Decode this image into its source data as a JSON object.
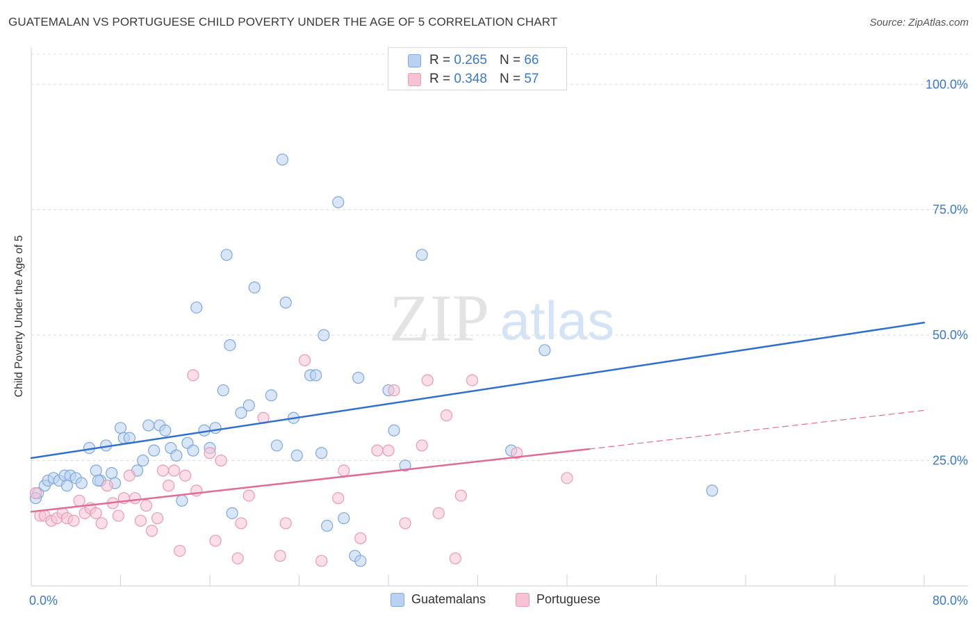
{
  "header": {
    "title": "GUATEMALAN VS PORTUGUESE CHILD POVERTY UNDER THE AGE OF 5 CORRELATION CHART",
    "source": "Source: ZipAtlas.com"
  },
  "watermark": {
    "zip": "ZIP",
    "atlas": "atlas"
  },
  "legend": {
    "rows": [
      {
        "r_label": "R =",
        "r_value": "0.265",
        "n_label": "N =",
        "n_value": "66"
      },
      {
        "r_label": "R =",
        "r_value": "0.348",
        "n_label": "N =",
        "n_value": "57"
      }
    ]
  },
  "colors": {
    "guatemalans_fill": "#b9d2f3",
    "guatemalans_stroke": "#7ea8dc",
    "guatemalans_line": "#2f6fcf",
    "portuguese_fill": "#f7c3d3",
    "portuguese_stroke": "#e99ab4",
    "portuguese_line": "#e06b97",
    "tick_label": "#3a78c9",
    "grid": "#dcdcdc"
  },
  "chart_data": {
    "type": "scatter",
    "xlabel": "",
    "ylabel": "Child Poverty Under the Age of 5",
    "xlim": [
      0,
      80
    ],
    "ylim": [
      0,
      106
    ],
    "x_tick_labels": [
      {
        "value": 0,
        "label": "0.0%"
      },
      {
        "value": 80,
        "label": "80.0%"
      }
    ],
    "y_tick_labels": [
      {
        "value": 25,
        "label": "25.0%"
      },
      {
        "value": 50,
        "label": "50.0%"
      },
      {
        "value": 75,
        "label": "75.0%"
      },
      {
        "value": 100,
        "label": "100.0%"
      }
    ],
    "grid": true,
    "legend_position": "top-center",
    "series": [
      {
        "name": "Guatemalans",
        "points": [
          [
            0.6,
            18.5
          ],
          [
            1.2,
            20.0
          ],
          [
            1.5,
            21.0
          ],
          [
            2.0,
            21.5
          ],
          [
            2.5,
            21.0
          ],
          [
            3.0,
            22.0
          ],
          [
            3.5,
            22.0
          ],
          [
            4.0,
            21.5
          ],
          [
            4.5,
            20.5
          ],
          [
            5.2,
            27.5
          ],
          [
            5.8,
            23.0
          ],
          [
            6.2,
            21.0
          ],
          [
            6.7,
            28.0
          ],
          [
            7.2,
            22.5
          ],
          [
            7.5,
            20.5
          ],
          [
            8.0,
            31.5
          ],
          [
            8.3,
            29.5
          ],
          [
            8.8,
            29.5
          ],
          [
            9.5,
            23.0
          ],
          [
            10.0,
            25.0
          ],
          [
            10.5,
            32.0
          ],
          [
            11.0,
            27.0
          ],
          [
            11.5,
            32.0
          ],
          [
            12.0,
            31.0
          ],
          [
            12.5,
            27.5
          ],
          [
            13.0,
            26.0
          ],
          [
            13.5,
            17.0
          ],
          [
            14.0,
            28.5
          ],
          [
            14.5,
            27.0
          ],
          [
            14.8,
            55.5
          ],
          [
            15.5,
            31.0
          ],
          [
            16.0,
            27.5
          ],
          [
            16.5,
            31.5
          ],
          [
            17.2,
            39.0
          ],
          [
            17.5,
            66.0
          ],
          [
            17.8,
            48.0
          ],
          [
            18.0,
            14.5
          ],
          [
            18.8,
            34.5
          ],
          [
            19.5,
            36.0
          ],
          [
            20.0,
            59.5
          ],
          [
            21.5,
            38.0
          ],
          [
            22.0,
            28.0
          ],
          [
            22.5,
            85.0
          ],
          [
            22.8,
            56.5
          ],
          [
            23.5,
            33.5
          ],
          [
            23.8,
            26.0
          ],
          [
            25.0,
            42.0
          ],
          [
            25.5,
            42.0
          ],
          [
            26.0,
            26.5
          ],
          [
            26.2,
            50.0
          ],
          [
            26.5,
            12.0
          ],
          [
            27.5,
            76.5
          ],
          [
            28.0,
            13.5
          ],
          [
            29.0,
            6.0
          ],
          [
            29.3,
            41.5
          ],
          [
            29.5,
            5.0
          ],
          [
            32.0,
            39.0
          ],
          [
            32.5,
            31.0
          ],
          [
            33.5,
            24.0
          ],
          [
            35.0,
            66.0
          ],
          [
            43.0,
            27.0
          ],
          [
            46.0,
            47.0
          ],
          [
            61.0,
            19.0
          ],
          [
            0.4,
            17.5
          ],
          [
            6.0,
            21.0
          ],
          [
            3.2,
            20.0
          ]
        ]
      },
      {
        "name": "Portuguese",
        "points": [
          [
            0.4,
            18.5
          ],
          [
            0.8,
            14.0
          ],
          [
            1.2,
            14.0
          ],
          [
            1.8,
            13.0
          ],
          [
            2.3,
            13.5
          ],
          [
            2.8,
            14.5
          ],
          [
            3.2,
            13.5
          ],
          [
            3.8,
            13.0
          ],
          [
            4.3,
            17.0
          ],
          [
            4.8,
            14.5
          ],
          [
            5.3,
            15.5
          ],
          [
            5.8,
            14.5
          ],
          [
            6.3,
            12.5
          ],
          [
            6.8,
            20.0
          ],
          [
            7.3,
            16.5
          ],
          [
            7.8,
            14.0
          ],
          [
            8.3,
            17.5
          ],
          [
            8.8,
            22.0
          ],
          [
            9.3,
            17.5
          ],
          [
            9.8,
            13.0
          ],
          [
            10.3,
            16.0
          ],
          [
            10.8,
            11.0
          ],
          [
            11.3,
            13.5
          ],
          [
            11.8,
            23.0
          ],
          [
            12.3,
            20.0
          ],
          [
            12.8,
            23.0
          ],
          [
            13.3,
            7.0
          ],
          [
            13.8,
            22.0
          ],
          [
            14.5,
            42.0
          ],
          [
            14.8,
            19.0
          ],
          [
            16.0,
            26.5
          ],
          [
            16.5,
            9.0
          ],
          [
            17.0,
            25.0
          ],
          [
            18.5,
            5.5
          ],
          [
            18.8,
            12.5
          ],
          [
            19.5,
            18.0
          ],
          [
            20.8,
            33.5
          ],
          [
            22.3,
            6.0
          ],
          [
            22.8,
            12.5
          ],
          [
            24.5,
            45.0
          ],
          [
            26.0,
            5.0
          ],
          [
            27.5,
            17.5
          ],
          [
            28.0,
            23.0
          ],
          [
            29.5,
            9.5
          ],
          [
            31.0,
            27.0
          ],
          [
            32.0,
            27.0
          ],
          [
            32.5,
            39.0
          ],
          [
            33.5,
            12.5
          ],
          [
            35.0,
            28.0
          ],
          [
            35.5,
            41.0
          ],
          [
            36.5,
            14.5
          ],
          [
            37.2,
            34.0
          ],
          [
            38.0,
            5.5
          ],
          [
            38.5,
            18.0
          ],
          [
            39.5,
            41.0
          ],
          [
            43.5,
            26.5
          ],
          [
            48.0,
            21.5
          ]
        ]
      }
    ],
    "trendlines": [
      {
        "series": "Guatemalans",
        "x": [
          0,
          80
        ],
        "y": [
          25.5,
          52.5
        ],
        "style": "solid"
      },
      {
        "series": "Portuguese",
        "x": [
          0,
          50
        ],
        "y": [
          14.8,
          27.3
        ],
        "style": "solid"
      },
      {
        "series": "Portuguese",
        "x": [
          50,
          80
        ],
        "y": [
          27.3,
          35.0
        ],
        "style": "dashed"
      }
    ]
  }
}
